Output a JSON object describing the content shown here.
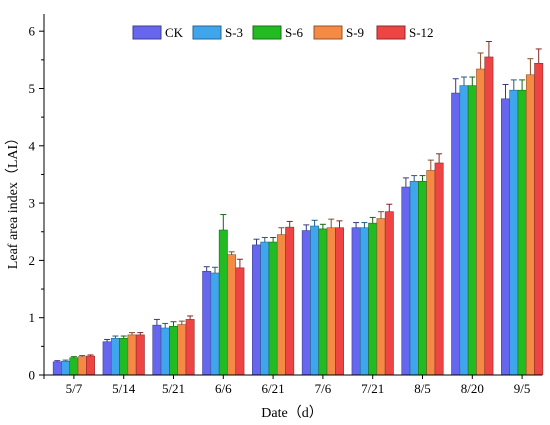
{
  "chart_data": {
    "type": "bar",
    "xlabel": "Date（d）",
    "ylabel": "Leaf area index（LAI）",
    "ylim": [
      0,
      6.3
    ],
    "yticks": [
      "0",
      "1",
      "2",
      "3",
      "4",
      "5",
      "6"
    ],
    "grid": false,
    "legend_position": "top",
    "categories": [
      "5/7",
      "5/14",
      "5/21",
      "6/6",
      "6/21",
      "7/6",
      "7/21",
      "8/5",
      "8/20",
      "9/5"
    ],
    "series": [
      {
        "name": "CK",
        "color": "#6666ee",
        "values": [
          0.23,
          0.58,
          0.87,
          1.81,
          2.27,
          2.52,
          2.57,
          3.28,
          4.92,
          4.82
        ],
        "errors": [
          0.02,
          0.04,
          0.1,
          0.08,
          0.1,
          0.1,
          0.09,
          0.16,
          0.25,
          0.25
        ]
      },
      {
        "name": "S-3",
        "color": "#3fa6ee",
        "values": [
          0.24,
          0.64,
          0.82,
          1.78,
          2.32,
          2.6,
          2.57,
          3.38,
          5.05,
          4.97
        ],
        "errors": [
          0.02,
          0.04,
          0.08,
          0.1,
          0.08,
          0.1,
          0.09,
          0.1,
          0.15,
          0.18
        ]
      },
      {
        "name": "S-6",
        "color": "#22bb22",
        "values": [
          0.3,
          0.64,
          0.85,
          2.53,
          2.32,
          2.55,
          2.65,
          3.38,
          5.05,
          4.97
        ],
        "errors": [
          0.02,
          0.04,
          0.08,
          0.27,
          0.08,
          0.08,
          0.1,
          0.1,
          0.15,
          0.18
        ]
      },
      {
        "name": "S-9",
        "color": "#f58a44",
        "values": [
          0.32,
          0.7,
          0.88,
          2.1,
          2.45,
          2.57,
          2.73,
          3.57,
          5.34,
          5.24
        ],
        "errors": [
          0.02,
          0.04,
          0.06,
          0.05,
          0.12,
          0.15,
          0.12,
          0.18,
          0.28,
          0.28
        ]
      },
      {
        "name": "S-12",
        "color": "#ee4444",
        "values": [
          0.33,
          0.7,
          0.97,
          1.87,
          2.58,
          2.57,
          2.85,
          3.7,
          5.55,
          5.44
        ],
        "errors": [
          0.02,
          0.04,
          0.06,
          0.15,
          0.1,
          0.12,
          0.13,
          0.16,
          0.27,
          0.25
        ]
      }
    ]
  }
}
